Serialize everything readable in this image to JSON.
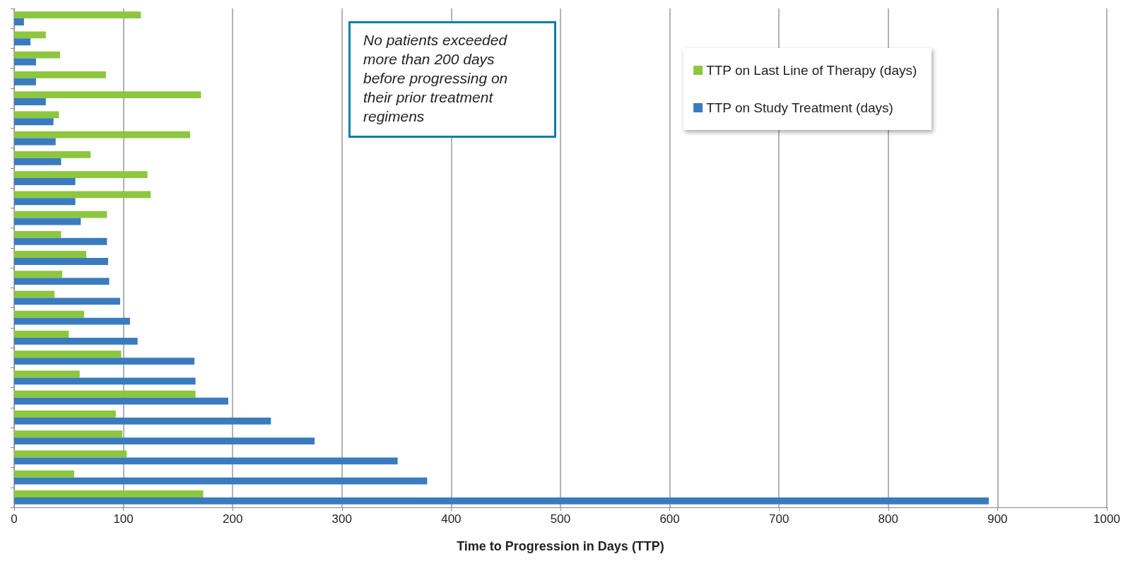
{
  "chart_data": {
    "type": "bar",
    "orientation": "horizontal",
    "xlabel": "Time to Progression in Days (TTP)",
    "categories": [
      null,
      null,
      null,
      null,
      null,
      null,
      null,
      null,
      null,
      null,
      null,
      null,
      null,
      null,
      null,
      null,
      null,
      null,
      null,
      null,
      null,
      null,
      null,
      null,
      null
    ],
    "series": [
      {
        "name": "TTP on Last Line of Therapy (days)",
        "color": "#8dc63f",
        "values": [
          116,
          29,
          42,
          84,
          171,
          41,
          161,
          70,
          122,
          125,
          85,
          43,
          66,
          44,
          37,
          64,
          50,
          98,
          60,
          166,
          93,
          99,
          103,
          55,
          173
        ]
      },
      {
        "name": "TTP on Study Treatment (days)",
        "color": "#3a7bbf",
        "values": [
          9,
          15,
          20,
          20,
          29,
          36,
          38,
          43,
          56,
          56,
          61,
          85,
          86,
          87,
          97,
          106,
          113,
          165,
          166,
          196,
          235,
          275,
          351,
          378,
          892
        ]
      }
    ],
    "xlim": [
      0,
      1000
    ],
    "xticks": [
      0,
      100,
      200,
      300,
      400,
      500,
      600,
      700,
      800,
      900,
      1000
    ],
    "grid": "x",
    "legend": "top right",
    "tick_labels": "x",
    "annotations": [
      "No patients exceeded more than 200 days before progressing on their prior treatment regimens"
    ]
  }
}
